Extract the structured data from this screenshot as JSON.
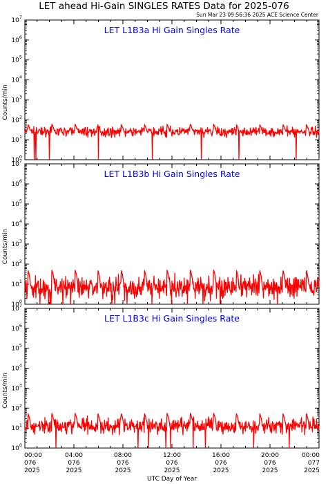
{
  "title": "LET ahead Hi-Gain SINGLES RATES Data for 2025-076",
  "timestamp": "Sun Mar 23 09:56:36 2025 ACE Science Center",
  "chart_data": [
    {
      "type": "line",
      "title": "LET L1B3a Hi Gain Singles Rate",
      "ylabel": "Counts/min",
      "yscale": "log",
      "ylim": [
        1,
        10000000
      ],
      "xlim": [
        0,
        24
      ],
      "x_units": "hours UTC",
      "baseline": 25,
      "spread": 1.6,
      "spike_peak": 60,
      "series_color": "#ff0000"
    },
    {
      "type": "line",
      "title": "LET L1B3b Hi Gain Singles Rate",
      "ylabel": "Counts/min",
      "yscale": "log",
      "ylim": [
        1,
        10000000
      ],
      "xlim": [
        0,
        24
      ],
      "x_units": "hours UTC",
      "baseline": 7,
      "spread": 3.0,
      "spike_peak": 50,
      "series_color": "#ff0000"
    },
    {
      "type": "line",
      "title": "LET L1B3c Hi Gain Singles Rate",
      "ylabel": "Counts/min",
      "yscale": "log",
      "ylim": [
        1,
        10000000
      ],
      "xlim": [
        0,
        24
      ],
      "x_units": "hours UTC",
      "baseline": 13,
      "spread": 2.2,
      "spike_peak": 55,
      "series_color": "#ff0000"
    }
  ],
  "xaxis": {
    "label": "UTC Day of Year",
    "ticks": [
      {
        "time": "00:00",
        "doy": "076",
        "year": "2025"
      },
      {
        "time": "04:00",
        "doy": "076",
        "year": "2025"
      },
      {
        "time": "08:00",
        "doy": "076",
        "year": "2025"
      },
      {
        "time": "12:00",
        "doy": "076",
        "year": "2025"
      },
      {
        "time": "16:00",
        "doy": "076",
        "year": "2025"
      },
      {
        "time": "20:00",
        "doy": "076",
        "year": "2025"
      },
      {
        "time": "00:00",
        "doy": "077",
        "year": "2025"
      }
    ]
  },
  "spike_hours": [
    0.25,
    2.2,
    4.1,
    5.95,
    7.85,
    9.75,
    11.6,
    13.5,
    15.4,
    17.25,
    19.15,
    21.05,
    22.95
  ],
  "title_color": "#0000ff"
}
